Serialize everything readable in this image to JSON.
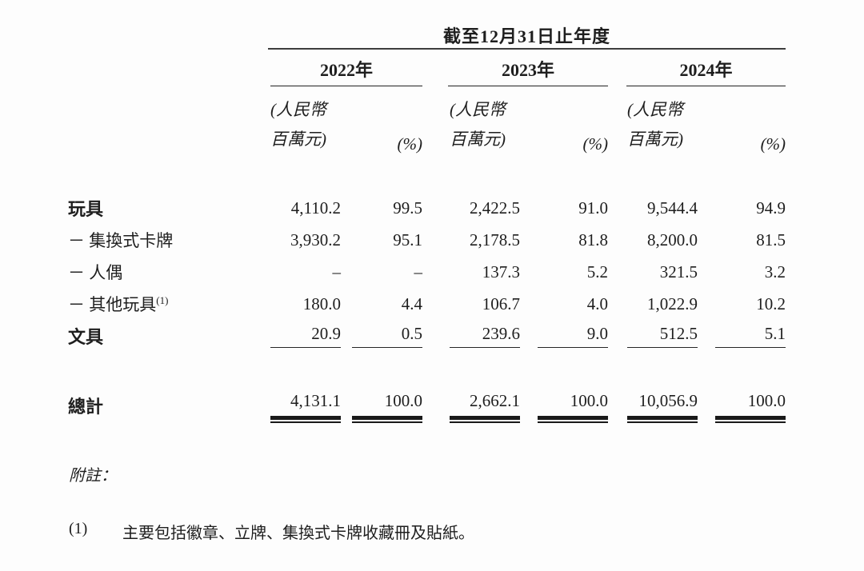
{
  "table": {
    "title": "截至12月31日止年度",
    "years": [
      {
        "label": "2022年"
      },
      {
        "label": "2023年"
      },
      {
        "label": "2024年"
      }
    ],
    "subheader": {
      "currency_line1": "(人民幣",
      "currency_line2": "百萬元)",
      "percent": "(%)"
    },
    "rows": [
      {
        "label": "玩具",
        "cells": [
          "4,110.2",
          "99.5",
          "2,422.5",
          "91.0",
          "9,544.4",
          "94.9"
        ]
      },
      {
        "label": "－ 集換式卡牌",
        "cells": [
          "3,930.2",
          "95.1",
          "2,178.5",
          "81.8",
          "8,200.0",
          "81.5"
        ]
      },
      {
        "label": "－ 人偶",
        "cells": [
          "–",
          "–",
          "137.3",
          "5.2",
          "321.5",
          "3.2"
        ]
      },
      {
        "label": "－ 其他玩具",
        "sup": "(1)",
        "cells": [
          "180.0",
          "4.4",
          "106.7",
          "4.0",
          "1,022.9",
          "10.2"
        ]
      },
      {
        "label": "文具",
        "cells": [
          "20.9",
          "0.5",
          "239.6",
          "9.0",
          "512.5",
          "5.1"
        ]
      }
    ],
    "total": {
      "label": "總計",
      "cells": [
        "4,131.1",
        "100.0",
        "2,662.1",
        "100.0",
        "10,056.9",
        "100.0"
      ]
    }
  },
  "notes": {
    "heading": "附註：",
    "items": [
      {
        "marker": "(1)",
        "text": "主要包括徽章、立牌、集換式卡牌收藏冊及貼紙。"
      }
    ]
  },
  "colors": {
    "text": "#1e1e1e",
    "rule_heavy": "#3d3d3d",
    "rule_thin": "#222222",
    "background": "#fdfdfd"
  }
}
